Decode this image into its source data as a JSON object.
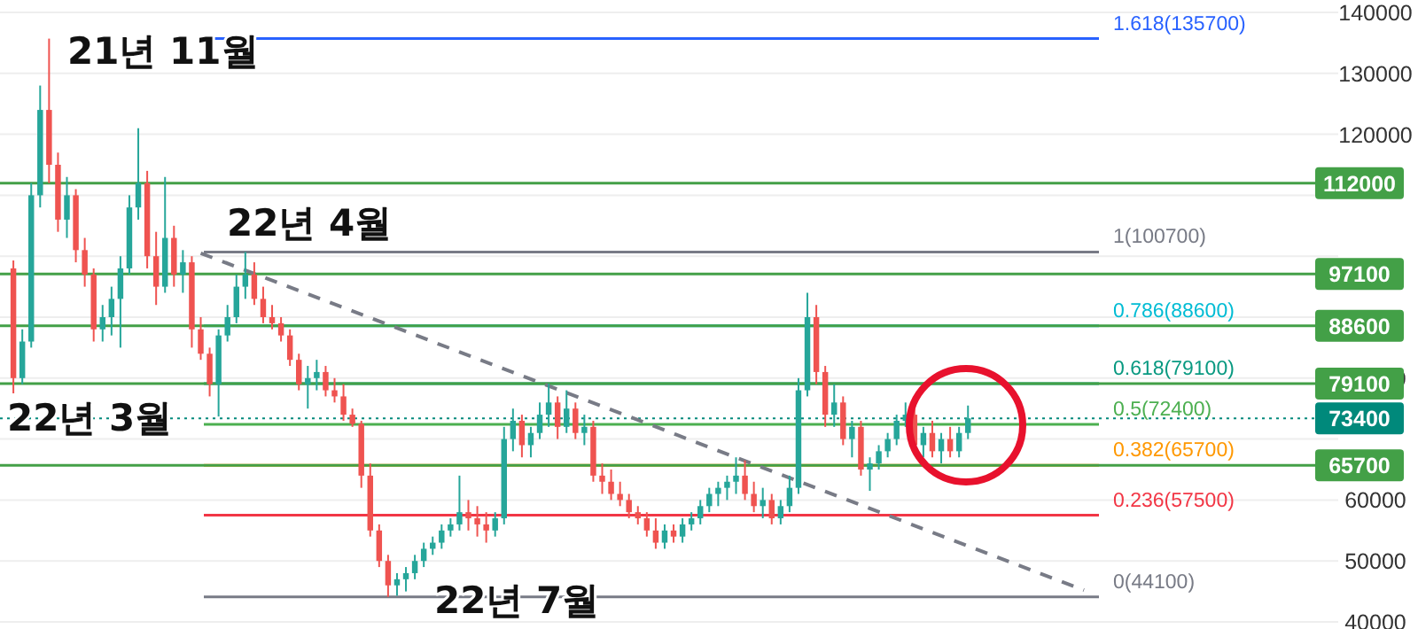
{
  "chart_data": {
    "type": "candlestick",
    "grid": "y",
    "tick_labels": "y",
    "colors": [
      null,
      "#ef5350",
      "#26a69a",
      "#26a69a",
      "#26a69a",
      "#ef5350",
      "#ef5350",
      "#26a69a",
      "#ef5350",
      "#ef5350",
      "#ef5350",
      "#26a69a",
      "#26a69a",
      "#26a69a",
      "#26a69a",
      "#26a69a",
      "#ef5350",
      "#ef5350",
      "#26a69a",
      "#ef5350",
      "#26a69a",
      "#ef5350",
      "#ef5350",
      "#ef5350",
      "#26a69a",
      "#26a69a",
      "#26a69a",
      "#26a69a",
      "#ef5350",
      "#ef5350",
      "#ef5350",
      "#ef5350",
      "#ef5350",
      "#ef5350",
      "#26a69a",
      "#26a69a",
      "#ef5350",
      "#ef5350",
      "#ef5350",
      "#ef5350",
      "#ef5350",
      "#ef5350",
      "#ef5350",
      "#ef5350",
      "#26a69a",
      "#26a69a",
      "#26a69a",
      "#26a69a",
      "#26a69a",
      "#26a69a",
      "#26a69a",
      "#26a69a",
      "#ef5350",
      "#ef5350",
      "#ef5350",
      "#26a69a",
      "#26a69a",
      "#26a69a",
      "#ef5350",
      "#26a69a",
      "#26a69a",
      "#26a69a",
      "#ef5350",
      "#26a69a",
      "#ef5350",
      "#26a69a",
      "#ef5350",
      "#ef5350",
      "#ef5350",
      "#ef5350",
      "#ef5350",
      "#ef5350",
      "#ef5350",
      "#ef5350",
      "#26a69a",
      "#ef5350",
      "#26a69a",
      "#26a69a",
      "#26a69a",
      "#26a69a",
      "#26a69a",
      "#26a69a",
      "#26a69a",
      "#ef5350",
      "#ef5350",
      "#26a69a",
      "#ef5350",
      "#26a69a",
      "#26a69a",
      "#26a69a",
      "#26a69a",
      "#ef5350",
      "#ef5350",
      "#26a69a",
      "#ef5350",
      "#26a69a",
      "#ef5350",
      "#26a69a",
      "#26a69a",
      "#26a69a",
      "#26a69a",
      "#26a69a",
      "#ef5350",
      "#26a69a",
      "#ef5350",
      "#26a69a",
      "#ef5350",
      "#26a69a",
      "#26a69a",
      null,
      null,
      null,
      null,
      null,
      null,
      null,
      null,
      null,
      null,
      null,
      null,
      null,
      null,
      null,
      null,
      null,
      null,
      null,
      null,
      null,
      null,
      null,
      null,
      null,
      null,
      null,
      null,
      null,
      null,
      null,
      null,
      null,
      null,
      null,
      null,
      null,
      null,
      null,
      null,
      null
    ],
    "categories": [
      null,
      null,
      null,
      null,
      null,
      null,
      null,
      null,
      null,
      null,
      null,
      null,
      null,
      null,
      null,
      null,
      null,
      null,
      null,
      null,
      null,
      null,
      null,
      null,
      null,
      null,
      null,
      null,
      null,
      null,
      null,
      null,
      null,
      null,
      null,
      null,
      null,
      null,
      null,
      null,
      null,
      null,
      null,
      null,
      null,
      null,
      null,
      null,
      null,
      null,
      null,
      null,
      null,
      null,
      null,
      null,
      null,
      null,
      null,
      null,
      null,
      null,
      null,
      null,
      null,
      null,
      null,
      null,
      null,
      null,
      null,
      null,
      null,
      null,
      null,
      null,
      null,
      null,
      null,
      null,
      null,
      null,
      null,
      null,
      null,
      null,
      null,
      null,
      null,
      null,
      null,
      null,
      null,
      null,
      null,
      null,
      null,
      null,
      null,
      null,
      null,
      null,
      null,
      null,
      null,
      null,
      null,
      null,
      null,
      null,
      null,
      null,
      null,
      null,
      null,
      null,
      null,
      null,
      null,
      null,
      null,
      null,
      null,
      null,
      null,
      null,
      null,
      null,
      null,
      null,
      null,
      null,
      null,
      null,
      null,
      null,
      null,
      null,
      null,
      null,
      null,
      null,
      null,
      null,
      null,
      null,
      null,
      null,
      null,
      null
    ],
    "ohlc": [
      null,
      [
        98000,
        99300,
        77500,
        80000
      ],
      [
        80000,
        88000,
        79000,
        86000
      ],
      [
        86000,
        112000,
        85000,
        110000
      ],
      [
        110000,
        128000,
        108000,
        124000
      ],
      [
        124000,
        135700,
        112000,
        115000
      ],
      [
        115000,
        117000,
        104000,
        106000
      ],
      [
        106000,
        113000,
        103000,
        110000
      ],
      [
        110000,
        111000,
        99000,
        101000
      ],
      [
        101000,
        103000,
        95000,
        97000
      ],
      [
        97000,
        98000,
        86000,
        88000
      ],
      [
        88000,
        92000,
        86000,
        90000
      ],
      [
        90000,
        95000,
        87000,
        93000
      ],
      [
        93000,
        100000,
        85000,
        98000
      ],
      [
        98000,
        110000,
        97000,
        108000
      ],
      [
        108000,
        121000,
        106000,
        112000
      ],
      [
        112000,
        114000,
        98000,
        100000
      ],
      [
        100000,
        104000,
        92000,
        95000
      ],
      [
        95000,
        113000,
        94000,
        103000
      ],
      [
        103000,
        105000,
        95000,
        97000
      ],
      [
        97000,
        101000,
        94000,
        99000
      ],
      [
        99000,
        100000,
        85000,
        88000
      ],
      [
        88000,
        90000,
        83000,
        84000
      ],
      [
        84000,
        85000,
        77000,
        79000
      ],
      [
        79000,
        88000,
        73700,
        87000
      ],
      [
        87000,
        92000,
        86000,
        90000
      ],
      [
        90000,
        97000,
        89000,
        95000
      ],
      [
        95000,
        100700,
        93000,
        97000
      ],
      [
        97000,
        99000,
        92000,
        93000
      ],
      [
        93000,
        95000,
        89000,
        90000
      ],
      [
        90000,
        92000,
        88000,
        89000
      ],
      [
        89000,
        90000,
        86000,
        87000
      ],
      [
        87000,
        88000,
        82000,
        83000
      ],
      [
        83000,
        84000,
        78000,
        79000
      ],
      [
        79000,
        82000,
        75000,
        80000
      ],
      [
        80000,
        83000,
        78000,
        81000
      ],
      [
        81000,
        82000,
        77000,
        78000
      ],
      [
        78000,
        80000,
        76000,
        77000
      ],
      [
        77000,
        79000,
        73000,
        74000
      ],
      [
        74000,
        75000,
        72000,
        72500
      ],
      [
        72500,
        73000,
        62000,
        64000
      ],
      [
        64000,
        66000,
        54000,
        55000
      ],
      [
        55000,
        56000,
        49000,
        50000
      ],
      [
        50000,
        51000,
        44100,
        46000
      ],
      [
        46000,
        48000,
        44300,
        47000
      ],
      [
        47000,
        49000,
        45000,
        48000
      ],
      [
        48000,
        51000,
        47000,
        50000
      ],
      [
        50000,
        53000,
        49000,
        52000
      ],
      [
        52000,
        54000,
        51000,
        53000
      ],
      [
        53000,
        56000,
        52000,
        55000
      ],
      [
        55000,
        57000,
        54000,
        56000
      ],
      [
        56000,
        64000,
        55000,
        58000
      ],
      [
        58000,
        60000,
        55000,
        57000
      ],
      [
        57000,
        59000,
        54000,
        56000
      ],
      [
        56000,
        58000,
        53000,
        55000
      ],
      [
        55000,
        58000,
        54000,
        57000
      ],
      [
        57000,
        72000,
        56000,
        70000
      ],
      [
        70000,
        75000,
        68000,
        73000
      ],
      [
        73000,
        74000,
        67000,
        69000
      ],
      [
        69000,
        72000,
        67000,
        71000
      ],
      [
        71000,
        76000,
        70000,
        74000
      ],
      [
        74000,
        79100,
        72000,
        76000
      ],
      [
        76000,
        77000,
        70000,
        72000
      ],
      [
        72000,
        78000,
        71000,
        75000
      ],
      [
        75000,
        76000,
        70000,
        71000
      ],
      [
        71000,
        74000,
        69000,
        72000
      ],
      [
        72000,
        73000,
        63000,
        64000
      ],
      [
        64000,
        66000,
        61000,
        63000
      ],
      [
        63000,
        65000,
        60000,
        61000
      ],
      [
        61000,
        63000,
        59000,
        60000
      ],
      [
        60000,
        61000,
        57000,
        58000
      ],
      [
        58000,
        59000,
        56000,
        57000
      ],
      [
        57000,
        58000,
        54000,
        55000
      ],
      [
        55000,
        57000,
        52000,
        53000
      ],
      [
        53000,
        56000,
        52000,
        55000
      ],
      [
        55000,
        56000,
        53000,
        54000
      ],
      [
        54000,
        57000,
        53000,
        56000
      ],
      [
        56000,
        58000,
        55000,
        57000
      ],
      [
        57000,
        60000,
        56000,
        59000
      ],
      [
        59000,
        62000,
        58000,
        61000
      ],
      [
        61000,
        63000,
        59000,
        62000
      ],
      [
        62000,
        64000,
        60000,
        63000
      ],
      [
        63000,
        67000,
        61000,
        64000
      ],
      [
        64000,
        66500,
        60000,
        61000
      ],
      [
        61000,
        63000,
        58000,
        59000
      ],
      [
        59000,
        62000,
        57000,
        60000
      ],
      [
        60000,
        61000,
        56000,
        57000
      ],
      [
        57000,
        60000,
        56000,
        59000
      ],
      [
        59000,
        64000,
        58000,
        62000
      ],
      [
        62000,
        80000,
        61000,
        78000
      ],
      [
        78000,
        94000,
        77000,
        90000
      ],
      [
        90000,
        92000,
        79000,
        81000
      ],
      [
        81000,
        82000,
        72000,
        74000
      ],
      [
        74000,
        79000,
        72000,
        76000
      ],
      [
        76000,
        77000,
        69000,
        70000
      ],
      [
        70000,
        73000,
        67000,
        72000
      ],
      [
        72000,
        73000,
        64000,
        65000
      ],
      [
        65000,
        67000,
        61500,
        66000
      ],
      [
        66000,
        69000,
        65000,
        68000
      ],
      [
        68000,
        71000,
        67000,
        70000
      ],
      [
        70000,
        74000,
        69000,
        73000
      ],
      [
        73000,
        76000,
        72000,
        74000
      ],
      [
        74000,
        75000,
        68000,
        69000
      ],
      [
        69000,
        72000,
        67000,
        71000
      ],
      [
        71000,
        73000,
        67000,
        68000
      ],
      [
        68000,
        71000,
        66000,
        70000
      ],
      [
        70000,
        72000,
        67000,
        68000
      ],
      [
        68000,
        72000,
        67000,
        71000
      ],
      [
        71000,
        75500,
        70000,
        73400
      ],
      null,
      null,
      null,
      null,
      null,
      null,
      null,
      null,
      null,
      null,
      null,
      null,
      null,
      null,
      null,
      null,
      null,
      null,
      null,
      null,
      null,
      null,
      null,
      null,
      null,
      null,
      null,
      null,
      null,
      null,
      null,
      null,
      null,
      null,
      null,
      null,
      null,
      null,
      null,
      null,
      null
    ],
    "series": [
      {
        "type": "line",
        "color": "#787b86",
        "line_style": "dashed",
        "values": [
          null,
          null,
          null,
          null,
          null,
          null,
          null,
          null,
          null,
          null,
          null,
          null,
          null,
          null,
          null,
          null,
          null,
          null,
          null,
          null,
          null,
          null,
          100500,
          null,
          null,
          null,
          null,
          null,
          null,
          null,
          null,
          null,
          null,
          null,
          null,
          null,
          null,
          null,
          null,
          null,
          null,
          null,
          null,
          null,
          null,
          null,
          null,
          null,
          null,
          null,
          null,
          null,
          null,
          null,
          null,
          null,
          null,
          null,
          null,
          null,
          null,
          null,
          null,
          null,
          null,
          null,
          null,
          null,
          null,
          null,
          null,
          null,
          null,
          null,
          null,
          null,
          null,
          null,
          null,
          null,
          null,
          null,
          null,
          null,
          null,
          null,
          null,
          null,
          null,
          null,
          null,
          null,
          null,
          null,
          null,
          null,
          null,
          null,
          null,
          null,
          null,
          null,
          null,
          null,
          null,
          null,
          null,
          null,
          null,
          null,
          null,
          null,
          null,
          null,
          null,
          null,
          null,
          null,
          null,
          null,
          null,
          45200,
          null,
          null,
          null,
          null,
          null,
          null,
          null,
          null,
          null,
          null,
          null,
          null,
          null,
          null,
          null,
          null,
          null,
          null,
          null,
          null,
          null,
          null,
          null,
          null,
          null,
          null,
          null,
          null
        ]
      }
    ],
    "ylim": [
      40000,
      140000
    ],
    "yticks": [
      40000,
      50000,
      60000,
      {
        "value": 70000,
        "label": null
      },
      80000,
      {
        "value": 90000,
        "label": null
      },
      {
        "value": 100000,
        "label": null
      },
      {
        "value": 110000,
        "label": null
      },
      120000,
      130000,
      140000
    ],
    "ref_lines": [
      {
        "axis": "y",
        "value": 135700,
        "label": "1.618(135700)",
        "color": "#2962ff"
      },
      {
        "axis": "y",
        "value": 100700,
        "label": "1(100700)",
        "color": "#787b86"
      },
      {
        "axis": "y",
        "value": 88600,
        "label": "0.786(88600)",
        "color": "#00bcd4"
      },
      {
        "axis": "y",
        "value": 79100,
        "label": "0.618(79100)",
        "color": "#089981"
      },
      {
        "axis": "y",
        "value": 72400,
        "label": "0.5(72400)",
        "color": "#4caf50"
      },
      {
        "axis": "y",
        "value": 65700,
        "label": "0.382(65700)",
        "color": "#ff9800"
      },
      {
        "axis": "y",
        "value": 57500,
        "label": "0.236(57500)",
        "color": "#f23645"
      },
      {
        "axis": "y",
        "value": 44100,
        "label": "0(44100)",
        "color": "#787b86"
      },
      {
        "axis": "y2",
        "value": 112000,
        "label": "112000",
        "color": "#43a047"
      },
      {
        "axis": "y2",
        "value": 97100,
        "label": "97100",
        "color": "#43a047"
      },
      {
        "axis": "y2",
        "value": 88600,
        "label": "88600",
        "color": "#43a047"
      },
      {
        "axis": "y2",
        "value": 79100,
        "label": "79100",
        "color": "#43a047"
      },
      {
        "axis": "y2",
        "value": 65700,
        "label": "65700",
        "color": "#43a047"
      },
      {
        "axis": "y2",
        "value": 73400,
        "label": "73400",
        "color": "#00897b",
        "line_style": "dotted"
      }
    ],
    "y2lim": [
      40000,
      140000
    ],
    "annotations": [
      "21년 11월",
      "22년 4월",
      "22년 3월",
      "22년 7월"
    ]
  }
}
